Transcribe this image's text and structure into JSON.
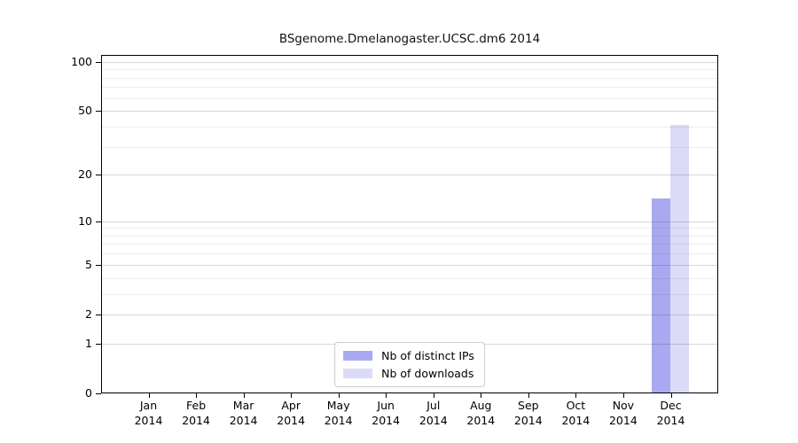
{
  "title": "BSgenome.Dmelanogaster.UCSC.dm6 2014",
  "chart_data": {
    "type": "bar",
    "title": "BSgenome.Dmelanogaster.UCSC.dm6 2014",
    "xlabel": "",
    "ylabel": "",
    "categories": [
      "Jan",
      "Feb",
      "Mar",
      "Apr",
      "May",
      "Jun",
      "Jul",
      "Aug",
      "Sep",
      "Oct",
      "Nov",
      "Dec"
    ],
    "tick_year": "2014",
    "series": [
      {
        "name": "Nb of distinct IPs",
        "color": "#a9a9f2",
        "values": [
          0,
          0,
          0,
          0,
          0,
          0,
          0,
          0,
          0,
          0,
          0,
          14
        ]
      },
      {
        "name": "Nb of downloads",
        "color": "#dbdbf8",
        "values": [
          0,
          0,
          0,
          0,
          0,
          0,
          0,
          0,
          0,
          0,
          0,
          41
        ]
      }
    ],
    "y_scale": "log1p",
    "y_ticks": [
      0,
      1,
      2,
      5,
      10,
      20,
      50,
      100
    ],
    "y_minor_gridlines": [
      3,
      4,
      6,
      7,
      8,
      9,
      30,
      40,
      60,
      70,
      80,
      90
    ],
    "ylim": [
      0,
      110
    ],
    "grid": true,
    "legend_position": "lower center",
    "colors": {
      "major_grid": "#d8d8d8",
      "minor_grid": "#eeeeee",
      "frame": "#000000"
    }
  },
  "legend": {
    "items": [
      {
        "label": "Nb of distinct IPs"
      },
      {
        "label": "Nb of downloads"
      }
    ]
  }
}
